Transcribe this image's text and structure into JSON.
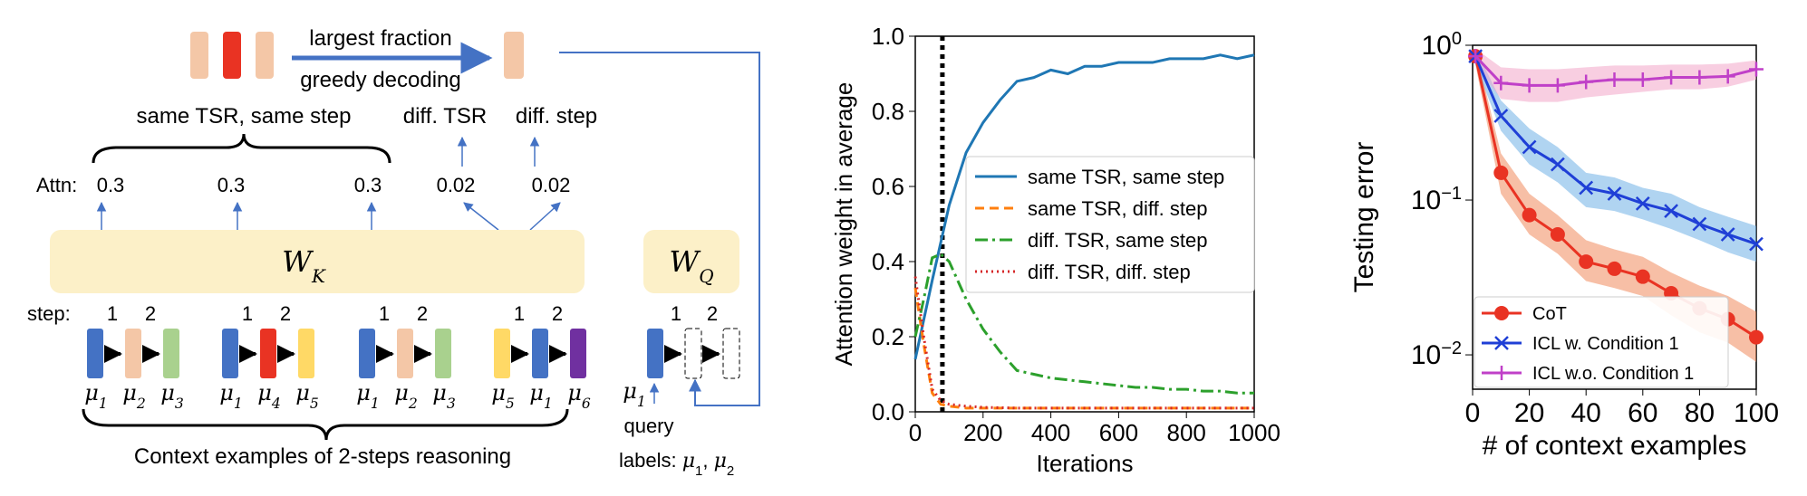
{
  "diagram": {
    "top_labels": {
      "largest_fraction": "largest fraction",
      "greedy_decoding": "greedy decoding",
      "same_tsr_same_step": "same TSR, same step",
      "diff_tsr": "diff. TSR",
      "diff_step": "diff. step"
    },
    "attn": {
      "label": "Attn:",
      "values": [
        "0.3",
        "0.3",
        "0.3",
        "0.02",
        "0.02"
      ]
    },
    "wk_label": "W_K",
    "wq_label": "W_Q",
    "step_label": "step:",
    "step_numbers": [
      "1",
      "2"
    ],
    "examples": [
      {
        "mus": [
          "μ1",
          "μ2",
          "μ3"
        ],
        "colors": [
          "#4472c4",
          "#f4c7a7",
          "#a9d18e"
        ]
      },
      {
        "mus": [
          "μ1",
          "μ4",
          "μ5"
        ],
        "colors": [
          "#4472c4",
          "#e93323",
          "#ffd966"
        ]
      },
      {
        "mus": [
          "μ1",
          "μ2",
          "μ3"
        ],
        "colors": [
          "#4472c4",
          "#f4c7a7",
          "#a9d18e"
        ]
      },
      {
        "mus": [
          "μ5",
          "μ1",
          "μ6"
        ],
        "colors": [
          "#ffd966",
          "#4472c4",
          "#7030a0"
        ]
      }
    ],
    "query_mu": "μ1",
    "query_label": "query",
    "labels_text": "labels: μ1, μ2",
    "context_caption": "Context examples of 2-steps reasoning",
    "output_bar_colors": [
      "#f4c7a7",
      "#e93323",
      "#f4c7a7"
    ],
    "output_result_color": "#f4c7a7",
    "arrow_color": "#4472c4"
  },
  "chart_data": [
    {
      "type": "line",
      "xlabel": "Iterations",
      "ylabel": "Attention weight in average",
      "xlim": [
        0,
        1000
      ],
      "ylim": [
        0,
        1.0
      ],
      "xticks": [
        0,
        200,
        400,
        600,
        800,
        1000
      ],
      "yticks": [
        0.0,
        0.2,
        0.4,
        0.6,
        0.8,
        1.0
      ],
      "legend_position": "center-right",
      "vline_x": 80,
      "series": [
        {
          "name": "same TSR, same step",
          "color": "#1f77b4",
          "dash": "solid",
          "x": [
            0,
            50,
            100,
            150,
            200,
            250,
            300,
            350,
            400,
            450,
            500,
            550,
            600,
            650,
            700,
            750,
            800,
            850,
            900,
            950,
            1000
          ],
          "y": [
            0.14,
            0.35,
            0.55,
            0.69,
            0.77,
            0.83,
            0.88,
            0.89,
            0.91,
            0.9,
            0.92,
            0.92,
            0.93,
            0.93,
            0.93,
            0.94,
            0.94,
            0.94,
            0.95,
            0.94,
            0.95
          ]
        },
        {
          "name": "same TSR, diff. step",
          "color": "#ff7f0e",
          "dash": "dashed",
          "x": [
            0,
            25,
            50,
            75,
            100,
            150,
            200,
            300,
            400,
            500,
            600,
            700,
            800,
            900,
            1000
          ],
          "y": [
            0.33,
            0.18,
            0.05,
            0.02,
            0.015,
            0.01,
            0.01,
            0.01,
            0.01,
            0.01,
            0.01,
            0.01,
            0.01,
            0.01,
            0.01
          ]
        },
        {
          "name": "diff. TSR, same step",
          "color": "#2ca02c",
          "dash": "dashdot",
          "x": [
            0,
            25,
            50,
            75,
            100,
            150,
            200,
            250,
            300,
            350,
            400,
            450,
            500,
            550,
            600,
            650,
            700,
            750,
            800,
            850,
            900,
            950,
            1000
          ],
          "y": [
            0.2,
            0.3,
            0.41,
            0.42,
            0.4,
            0.3,
            0.22,
            0.16,
            0.11,
            0.1,
            0.09,
            0.085,
            0.08,
            0.075,
            0.07,
            0.065,
            0.065,
            0.06,
            0.06,
            0.055,
            0.055,
            0.05,
            0.05
          ]
        },
        {
          "name": "diff. TSR, diff. step",
          "color": "#d62728",
          "dash": "dotted",
          "x": [
            0,
            25,
            50,
            75,
            100,
            150,
            200,
            300,
            400,
            500,
            600,
            700,
            800,
            900,
            1000
          ],
          "y": [
            0.36,
            0.2,
            0.06,
            0.03,
            0.02,
            0.015,
            0.012,
            0.01,
            0.01,
            0.01,
            0.01,
            0.01,
            0.01,
            0.01,
            0.01
          ]
        }
      ]
    },
    {
      "type": "line",
      "xlabel": "# of context examples",
      "ylabel": "Testing error",
      "xlim": [
        0,
        100
      ],
      "ylim": [
        0.006,
        1.0
      ],
      "yscale": "log",
      "xticks": [
        0,
        20,
        40,
        60,
        80,
        100
      ],
      "yticks": [
        1,
        0.1,
        0.01
      ],
      "ytick_labels": [
        "10^0",
        "10^-1",
        "10^-2"
      ],
      "legend_position": "bottom-left",
      "series": [
        {
          "name": "CoT",
          "color": "#e93323",
          "marker": "circle",
          "band_color": "#f08a5d",
          "x": [
            1,
            10,
            20,
            30,
            40,
            50,
            60,
            70,
            80,
            90,
            100
          ],
          "y": [
            0.85,
            0.15,
            0.08,
            0.06,
            0.04,
            0.036,
            0.032,
            0.025,
            0.02,
            0.017,
            0.013
          ],
          "band_lo": [
            0.75,
            0.11,
            0.06,
            0.045,
            0.03,
            0.027,
            0.024,
            0.018,
            0.014,
            0.012,
            0.009
          ],
          "band_hi": [
            0.95,
            0.2,
            0.11,
            0.08,
            0.055,
            0.048,
            0.043,
            0.034,
            0.028,
            0.024,
            0.019
          ]
        },
        {
          "name": "ICL w. Condition 1",
          "color": "#1f3fd6",
          "marker": "x",
          "band_color": "#6fb1e6",
          "x": [
            1,
            10,
            20,
            30,
            40,
            50,
            60,
            70,
            80,
            90,
            100
          ],
          "y": [
            0.85,
            0.35,
            0.22,
            0.17,
            0.12,
            0.11,
            0.095,
            0.085,
            0.07,
            0.06,
            0.052
          ],
          "band_lo": [
            0.75,
            0.28,
            0.17,
            0.13,
            0.09,
            0.085,
            0.075,
            0.065,
            0.055,
            0.046,
            0.04
          ],
          "band_hi": [
            0.95,
            0.44,
            0.29,
            0.22,
            0.15,
            0.14,
            0.12,
            0.11,
            0.09,
            0.078,
            0.068
          ]
        },
        {
          "name": "ICL w.o. Condition 1",
          "color": "#c040c8",
          "marker": "plus",
          "band_color": "#f2a6c8",
          "x": [
            1,
            10,
            20,
            30,
            40,
            50,
            60,
            70,
            80,
            90,
            100
          ],
          "y": [
            0.85,
            0.57,
            0.55,
            0.55,
            0.58,
            0.6,
            0.6,
            0.62,
            0.62,
            0.63,
            0.7
          ],
          "band_lo": [
            0.75,
            0.45,
            0.43,
            0.43,
            0.46,
            0.48,
            0.5,
            0.52,
            0.52,
            0.54,
            0.6
          ],
          "band_hi": [
            0.95,
            0.72,
            0.7,
            0.7,
            0.72,
            0.74,
            0.74,
            0.75,
            0.75,
            0.76,
            0.8
          ]
        }
      ]
    }
  ]
}
